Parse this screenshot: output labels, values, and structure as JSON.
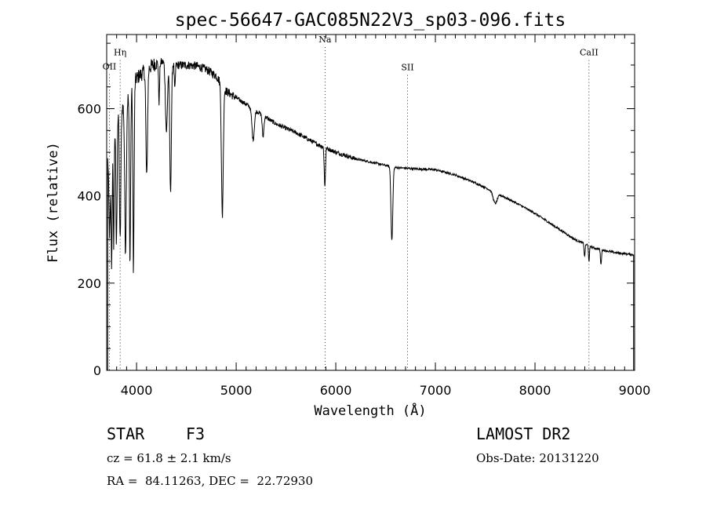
{
  "chart_data": {
    "type": "line",
    "title": "spec-56647-GAC085N22V3_sp03-096.fits",
    "xlabel": "Wavelength (Å)",
    "ylabel": "Flux (relative)",
    "xlim": [
      3700,
      9000
    ],
    "ylim": [
      0,
      770
    ],
    "x_ticks": [
      4000,
      5000,
      6000,
      7000,
      8000,
      9000
    ],
    "x_tick_labels": [
      "4000",
      "5000",
      "6000",
      "7000",
      "8000",
      "9000"
    ],
    "y_ticks": [
      0,
      200,
      400,
      600
    ],
    "y_tick_labels": [
      "0",
      "200",
      "400",
      "600"
    ],
    "grid": false,
    "spectral_lines": [
      {
        "name": "OII",
        "wavelength": 3727,
        "label_level": 690
      },
      {
        "name": "Hη",
        "wavelength": 3835,
        "label_level": 722
      },
      {
        "name": "Na",
        "wavelength": 5892,
        "label_level": 752
      },
      {
        "name": "SII",
        "wavelength": 6720,
        "label_level": 688
      },
      {
        "name": "CaII",
        "wavelength": 8542,
        "label_level": 722
      }
    ],
    "continuum": {
      "wavelengths": [
        3700,
        3800,
        3900,
        4000,
        4100,
        4200,
        4300,
        4400,
        4500,
        4600,
        4700,
        4800,
        4900,
        5000,
        5200,
        5400,
        5600,
        5800,
        6000,
        6200,
        6400,
        6600,
        6800,
        7000,
        7200,
        7400,
        7600,
        7800,
        8000,
        8200,
        8400,
        8600,
        8800,
        9000
      ],
      "flux": [
        480,
        580,
        620,
        670,
        690,
        705,
        708,
        700,
        700,
        698,
        690,
        675,
        640,
        625,
        595,
        565,
        545,
        520,
        500,
        485,
        475,
        465,
        462,
        460,
        448,
        430,
        408,
        385,
        360,
        330,
        300,
        280,
        270,
        265
      ]
    },
    "absorption_features": [
      {
        "wavelength": 3730,
        "depth": 200,
        "width": 8
      },
      {
        "wavelength": 3750,
        "depth": 280,
        "width": 5
      },
      {
        "wavelength": 3770,
        "depth": 260,
        "width": 5
      },
      {
        "wavelength": 3798,
        "depth": 290,
        "width": 6
      },
      {
        "wavelength": 3835,
        "depth": 300,
        "width": 7
      },
      {
        "wavelength": 3889,
        "depth": 340,
        "width": 8
      },
      {
        "wavelength": 3934,
        "depth": 390,
        "width": 6
      },
      {
        "wavelength": 3969,
        "depth": 420,
        "width": 6
      },
      {
        "wavelength": 4102,
        "depth": 250,
        "width": 8
      },
      {
        "wavelength": 4226,
        "depth": 90,
        "width": 5
      },
      {
        "wavelength": 4300,
        "depth": 160,
        "width": 10
      },
      {
        "wavelength": 4341,
        "depth": 300,
        "width": 8
      },
      {
        "wavelength": 4384,
        "depth": 60,
        "width": 5
      },
      {
        "wavelength": 4861,
        "depth": 300,
        "width": 9
      },
      {
        "wavelength": 5170,
        "depth": 70,
        "width": 12
      },
      {
        "wavelength": 5270,
        "depth": 50,
        "width": 8
      },
      {
        "wavelength": 5890,
        "depth": 90,
        "width": 6
      },
      {
        "wavelength": 6563,
        "depth": 170,
        "width": 9
      },
      {
        "wavelength": 7600,
        "depth": 25,
        "width": 20
      },
      {
        "wavelength": 8498,
        "depth": 30,
        "width": 5
      },
      {
        "wavelength": 8542,
        "depth": 35,
        "width": 5
      },
      {
        "wavelength": 8662,
        "depth": 35,
        "width": 5
      }
    ]
  },
  "info": {
    "object_class": "STAR",
    "subclass": "F3",
    "survey": "LAMOST DR2",
    "redshift": "cz = 61.8 ± 2.1 km/s",
    "obs_date": "Obs-Date: 20131220",
    "coords": "RA =  84.11263, DEC =  22.72930"
  }
}
